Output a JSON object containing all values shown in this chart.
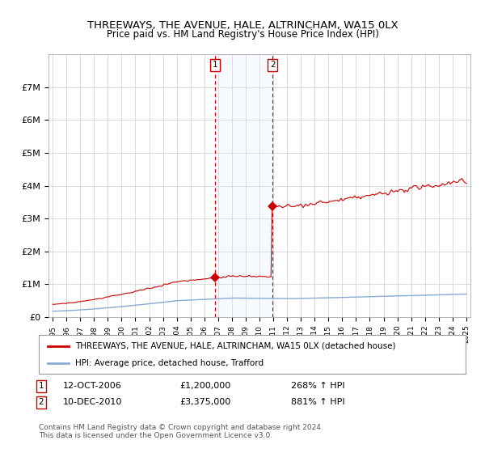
{
  "title": "THREEWAYS, THE AVENUE, HALE, ALTRINCHAM, WA15 0LX",
  "subtitle": "Price paid vs. HM Land Registry's House Price Index (HPI)",
  "ylim": [
    0,
    8000000
  ],
  "yticks": [
    0,
    1000000,
    2000000,
    3000000,
    4000000,
    5000000,
    6000000,
    7000000
  ],
  "ytick_labels": [
    "£0",
    "£1M",
    "£2M",
    "£3M",
    "£4M",
    "£5M",
    "£6M",
    "£7M"
  ],
  "sale1_date": 2006.79,
  "sale1_price": 1200000,
  "sale2_date": 2010.95,
  "sale2_price": 3375000,
  "red_line_color": "#cc0000",
  "blue_line_color": "#88aad0",
  "shade_color": "#ddeeff",
  "legend_entry1": "THREEWAYS, THE AVENUE, HALE, ALTRINCHAM, WA15 0LX (detached house)",
  "legend_entry2": "HPI: Average price, detached house, Trafford",
  "footer": "Contains HM Land Registry data © Crown copyright and database right 2024.\nThis data is licensed under the Open Government Licence v3.0.",
  "background_color": "#ffffff",
  "xstart": 1995,
  "xend": 2025
}
